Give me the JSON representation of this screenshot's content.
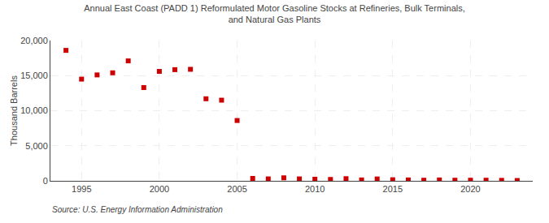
{
  "chart_data": {
    "type": "scatter",
    "title": "Annual East Coast (PADD 1) Reformulated Motor Gasoline Stocks at Refineries, Bulk Terminals,\nand Natural Gas Plants",
    "ylabel": "Thousand Barrels",
    "annotations": [
      "Source: U.S. Energy Information Administration"
    ],
    "x": [
      1994,
      1995,
      1996,
      1997,
      1998,
      1999,
      2000,
      2001,
      2002,
      2003,
      2004,
      2005,
      2006,
      2007,
      2008,
      2009,
      2010,
      2011,
      2012,
      2013,
      2014,
      2015,
      2016,
      2017,
      2018,
      2019,
      2020,
      2021,
      2022,
      2023
    ],
    "values": [
      18600,
      14500,
      15100,
      15400,
      17100,
      13300,
      15600,
      15850,
      15900,
      11700,
      11500,
      8600,
      350,
      280,
      430,
      280,
      230,
      200,
      310,
      130,
      270,
      160,
      130,
      90,
      130,
      90,
      90,
      90,
      70,
      50
    ],
    "color": "#cc0000",
    "marker": "square",
    "xlim": [
      1993.0,
      2024.0
    ],
    "xticks": [
      1995,
      2000,
      2005,
      2010,
      2015,
      2020
    ],
    "ylim": [
      0,
      20000
    ],
    "yticks": [
      0,
      {
        "value": 5000,
        "label": "5,000"
      },
      {
        "value": 10000,
        "label": "10,000"
      },
      {
        "value": 15000,
        "label": "15,000"
      },
      {
        "value": 20000,
        "label": "20,000"
      }
    ],
    "grid": true
  }
}
